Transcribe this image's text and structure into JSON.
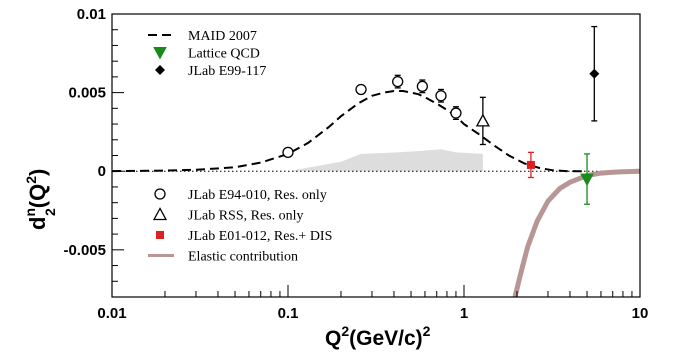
{
  "chart_data": {
    "type": "scatter",
    "x_scale": "log",
    "xlim": [
      0.01,
      10
    ],
    "ylim": [
      -0.008,
      0.01
    ],
    "x_ticks": [
      {
        "value": 0.01,
        "label": "0.01"
      },
      {
        "value": 0.1,
        "label": "0.1"
      },
      {
        "value": 1,
        "label": "1"
      },
      {
        "value": 10,
        "label": "10"
      }
    ],
    "y_ticks": [
      {
        "value": 0.01,
        "label": "0.01"
      },
      {
        "value": 0.005,
        "label": "0.005"
      },
      {
        "value": 0,
        "label": "0"
      },
      {
        "value": -0.005,
        "label": "-0.005"
      }
    ],
    "xlabel": {
      "main": "Q",
      "sup": "2",
      "unit": "(GeV/c)",
      "unit_sup": "2"
    },
    "ylabel": {
      "main": "d",
      "sup": "n",
      "sub": "2",
      "arg": "(Q",
      "arg_sup": "2",
      "arg_close": ")"
    },
    "zero_line": true,
    "legend_top": [
      {
        "key": "maid",
        "label": "MAID 2007",
        "symbol": "dashed-line",
        "color": "#000000"
      },
      {
        "key": "lattice",
        "label": "Lattice QCD",
        "symbol": "down-triangle",
        "color": "#1a8a1a"
      },
      {
        "key": "e99",
        "label": "JLab E99-117",
        "symbol": "diamond",
        "color": "#000000"
      }
    ],
    "legend_bottom": [
      {
        "key": "e94",
        "label": "JLab E94-010, Res. only",
        "symbol": "open-circle",
        "color": "#000000"
      },
      {
        "key": "rss",
        "label": "JLab RSS, Res. only",
        "symbol": "open-triangle",
        "color": "#000000"
      },
      {
        "key": "e01",
        "label": "JLab E01-012, Res.+ DIS",
        "symbol": "square",
        "color": "#e02020"
      },
      {
        "key": "elastic",
        "label": "Elastic contribution",
        "symbol": "thick-line",
        "color": "#b89696"
      }
    ],
    "series": [
      {
        "key": "maid",
        "type": "line",
        "style": "dashed",
        "x": [
          0.01,
          0.02,
          0.03,
          0.05,
          0.07,
          0.1,
          0.13,
          0.17,
          0.2,
          0.25,
          0.3,
          0.35,
          0.4,
          0.45,
          0.5,
          0.55,
          0.6,
          0.7,
          0.8,
          0.9,
          1.0,
          1.2,
          1.5,
          1.8,
          2.2,
          2.7,
          3.2,
          3.8,
          4.5,
          5.0
        ],
        "y": [
          1e-05,
          4e-05,
          9e-05,
          0.00025,
          0.00055,
          0.0011,
          0.0018,
          0.0028,
          0.0035,
          0.0043,
          0.0048,
          0.005,
          0.0051,
          0.0051,
          0.005,
          0.0049,
          0.0047,
          0.0043,
          0.0039,
          0.0035,
          0.003,
          0.0024,
          0.0016,
          0.001,
          0.0005,
          0.0002,
          6e-05,
          1e-05,
          0,
          0
        ]
      },
      {
        "key": "elastic",
        "type": "line",
        "style": "thick",
        "x": [
          1.95,
          2.1,
          2.3,
          2.6,
          3.0,
          3.5,
          4.0,
          5.0,
          6.0,
          7.0,
          8.0,
          10.0
        ],
        "y": [
          -0.0083,
          -0.0065,
          -0.0048,
          -0.0032,
          -0.0019,
          -0.0011,
          -0.0007,
          -0.00028,
          -0.00012,
          -6e-05,
          -3e-05,
          0
        ]
      },
      {
        "key": "e94",
        "type": "points",
        "marker": "open-circle",
        "points": [
          {
            "x": 0.1,
            "y": 0.0012,
            "err": 0.0001
          },
          {
            "x": 0.26,
            "y": 0.0052,
            "err": 0.0002
          },
          {
            "x": 0.42,
            "y": 0.0057,
            "err": 0.0004
          },
          {
            "x": 0.58,
            "y": 0.0054,
            "err": 0.0004
          },
          {
            "x": 0.74,
            "y": 0.0048,
            "err": 0.0004
          },
          {
            "x": 0.9,
            "y": 0.0037,
            "err": 0.0004
          }
        ]
      },
      {
        "key": "rss",
        "type": "points",
        "marker": "open-triangle",
        "points": [
          {
            "x": 1.28,
            "y": 0.0032,
            "err": 0.0015
          }
        ]
      },
      {
        "key": "e01",
        "type": "points",
        "marker": "square",
        "points": [
          {
            "x": 2.4,
            "y": 0.0004,
            "err": 0.0008
          }
        ]
      },
      {
        "key": "lattice",
        "type": "points",
        "marker": "down-triangle",
        "points": [
          {
            "x": 5.0,
            "y": -0.0005,
            "err": 0.0016
          }
        ]
      },
      {
        "key": "e99",
        "type": "points",
        "marker": "diamond",
        "points": [
          {
            "x": 5.5,
            "y": 0.0062,
            "err": 0.003
          }
        ]
      }
    ],
    "systematic_band": {
      "color": "#dddddd",
      "x": [
        0.1,
        0.2,
        0.26,
        0.42,
        0.58,
        0.74,
        0.9,
        1.28
      ],
      "y_top": [
        0,
        0.0006,
        0.0011,
        0.0012,
        0.0013,
        0.0014,
        0.0012,
        0.0011
      ]
    }
  }
}
